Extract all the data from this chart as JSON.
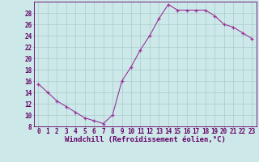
{
  "x": [
    0,
    1,
    2,
    3,
    4,
    5,
    6,
    7,
    8,
    9,
    10,
    11,
    12,
    13,
    14,
    15,
    16,
    17,
    18,
    19,
    20,
    21,
    22,
    23
  ],
  "y": [
    15.5,
    14.0,
    12.5,
    11.5,
    10.5,
    9.5,
    9.0,
    8.5,
    10.0,
    16.0,
    18.5,
    21.5,
    24.0,
    27.0,
    29.5,
    28.5,
    28.5,
    28.5,
    28.5,
    27.5,
    26.0,
    25.5,
    24.5,
    23.5
  ],
  "line_color": "#993399",
  "marker": "+",
  "marker_color": "#993399",
  "bg_color": "#cce8e8",
  "grid_color": "#aacccc",
  "axis_color": "#660066",
  "xlabel": "Windchill (Refroidissement éolien,°C)",
  "xlim": [
    -0.5,
    23.5
  ],
  "ylim": [
    8,
    30
  ],
  "yticks": [
    8,
    10,
    12,
    14,
    16,
    18,
    20,
    22,
    24,
    26,
    28
  ],
  "xticks": [
    0,
    1,
    2,
    3,
    4,
    5,
    6,
    7,
    8,
    9,
    10,
    11,
    12,
    13,
    14,
    15,
    16,
    17,
    18,
    19,
    20,
    21,
    22,
    23
  ],
  "tick_fontsize": 5.5,
  "xlabel_fontsize": 6.5
}
